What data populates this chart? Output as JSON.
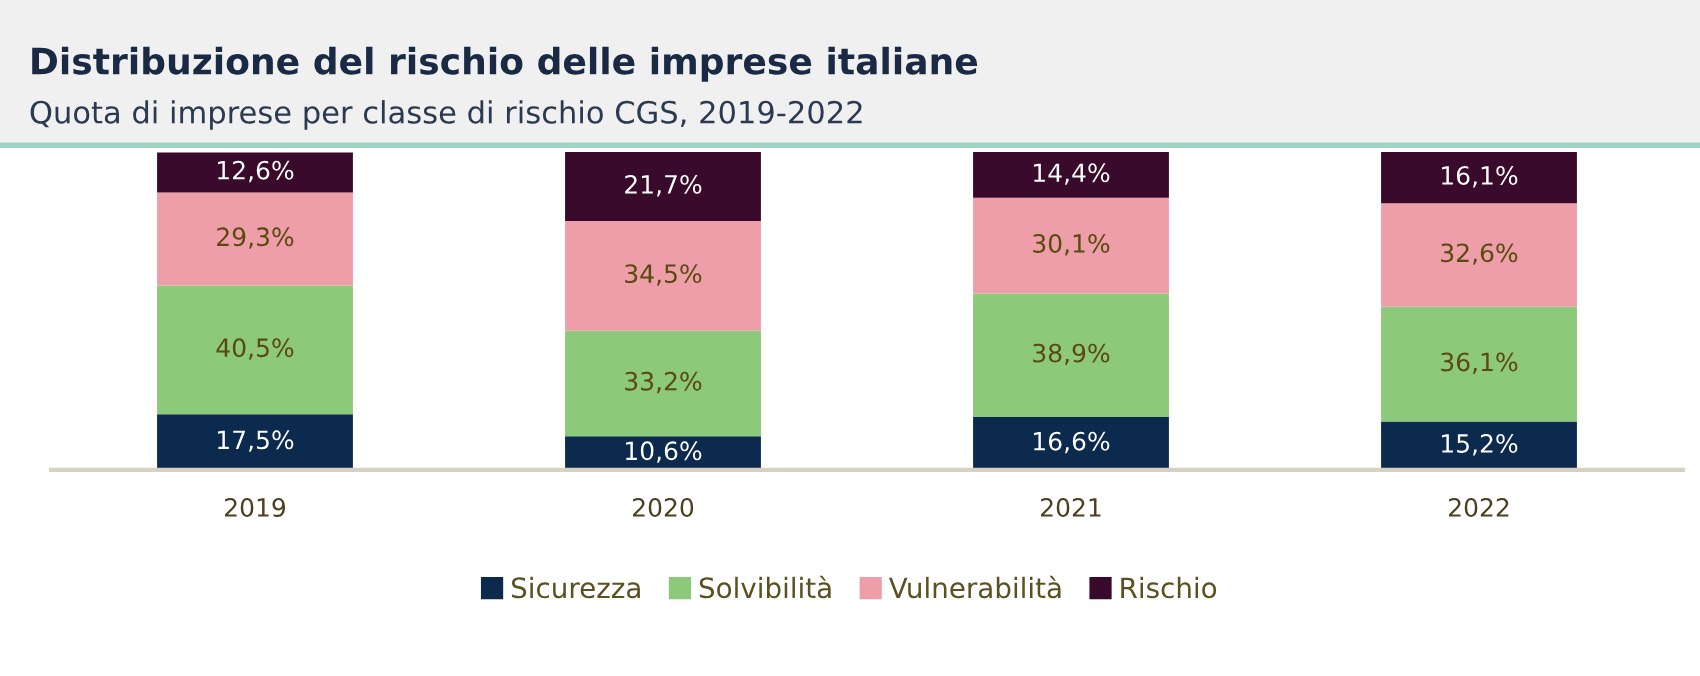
{
  "chart_data": {
    "type": "bar",
    "title": "Distribuzione del rischio delle imprese italiane",
    "subtitle": "Quota di imprese per classe di rischio CGS, 2019-2022",
    "categories": [
      "2019",
      "2020",
      "2021",
      "2022"
    ],
    "stacked": true,
    "legend": "bottom",
    "grid": false,
    "series": [
      {
        "name": "Sicurezza",
        "color": "#0b2a4e",
        "values": [
          17.5,
          10.6,
          16.6,
          15.2
        ],
        "value_labels": [
          "17,5%",
          "10,6%",
          "16,6%",
          "15,2%"
        ]
      },
      {
        "name": "Solvibilità",
        "color": "#8cc97a",
        "values": [
          40.5,
          33.2,
          38.9,
          36.1
        ],
        "value_labels": [
          "40,5%",
          "33,2%",
          "38,9%",
          "36,1%"
        ]
      },
      {
        "name": "Vulnerabilità",
        "color": "#ee9ea8",
        "values": [
          29.3,
          34.5,
          30.1,
          32.6
        ],
        "value_labels": [
          "29,3%",
          "34,5%",
          "30,1%",
          "32,6%"
        ]
      },
      {
        "name": "Rischio",
        "color": "#3a0a2c",
        "values": [
          12.6,
          21.7,
          14.4,
          16.1
        ],
        "value_labels": [
          "12,6%",
          "21,7%",
          "14,4%",
          "16,1%"
        ]
      }
    ]
  }
}
